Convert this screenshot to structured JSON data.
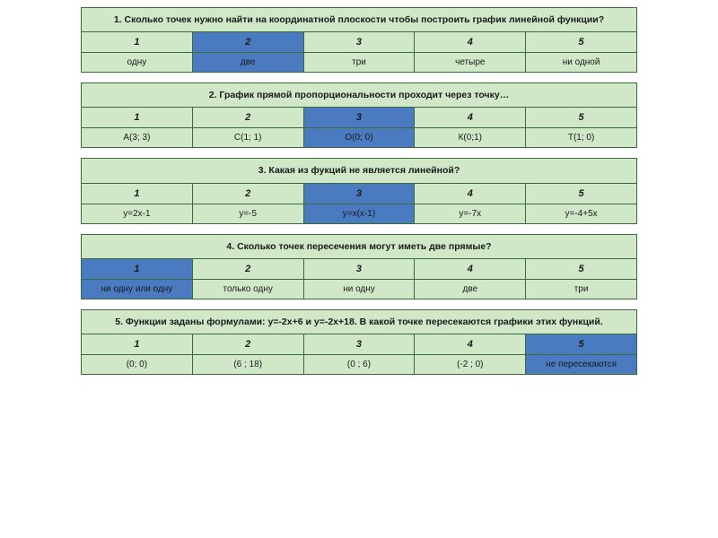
{
  "colors": {
    "bg_default": "#d0e8c8",
    "bg_highlight": "#4a7ac0",
    "border": "#3a6a3a",
    "text": "#1a1a1a"
  },
  "questions": [
    {
      "prompt": "1. Сколько точек нужно найти на координатной плоскости чтобы построить график линейной функции?",
      "numbers": [
        "1",
        "2",
        "3",
        "4",
        "5"
      ],
      "answers": [
        "одну",
        "две",
        "три",
        "четыре",
        "ни одной"
      ],
      "highlight_number": [
        false,
        true,
        false,
        false,
        false
      ],
      "highlight_answer": [
        false,
        true,
        false,
        false,
        false
      ]
    },
    {
      "prompt": "2. График прямой пропорциональности проходит через точку…",
      "numbers": [
        "1",
        "2",
        "3",
        "4",
        "5"
      ],
      "answers": [
        "А(3; 3)",
        "С(1; 1)",
        "О(0; 0)",
        "К(0;1)",
        "Т(1; 0)"
      ],
      "highlight_number": [
        false,
        false,
        true,
        false,
        false
      ],
      "highlight_answer": [
        false,
        false,
        true,
        false,
        false
      ]
    },
    {
      "prompt": "3. Какая из фукций не является линейной?",
      "numbers": [
        "1",
        "2",
        "3",
        "4",
        "5"
      ],
      "answers": [
        "y=2x-1",
        "y=-5",
        "y=x(x-1)",
        "y=-7x",
        "y=-4+5x"
      ],
      "highlight_number": [
        false,
        false,
        true,
        false,
        false
      ],
      "highlight_answer": [
        false,
        false,
        true,
        false,
        false
      ]
    },
    {
      "prompt": "4.  Сколько точек пересечения могут иметь две прямые?",
      "numbers": [
        "1",
        "2",
        "3",
        "4",
        "5"
      ],
      "answers": [
        "ни одну или одну",
        "только одну",
        "ни одну",
        "две",
        "три"
      ],
      "highlight_number": [
        true,
        false,
        false,
        false,
        false
      ],
      "highlight_answer": [
        true,
        false,
        false,
        false,
        false
      ]
    },
    {
      "prompt": "5. Функции заданы формулами: y=-2x+6  и  y=-2x+18. В какой точке пересекаются графики этих функций.",
      "numbers": [
        "1",
        "2",
        "3",
        "4",
        "5"
      ],
      "answers": [
        "(0; 0)",
        "(6 ; 18)",
        "(0 ; 6)",
        "(-2 ; 0)",
        "не пересекаются"
      ],
      "highlight_number": [
        false,
        false,
        false,
        false,
        true
      ],
      "highlight_answer": [
        false,
        false,
        false,
        false,
        true
      ]
    }
  ]
}
